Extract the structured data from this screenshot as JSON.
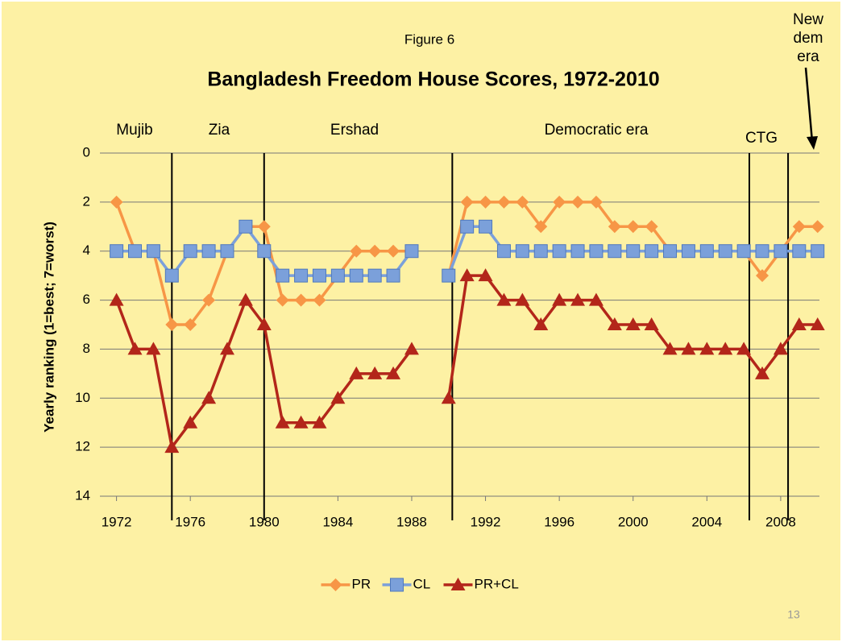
{
  "chart_data": {
    "type": "line",
    "subtitle": "Figure 6",
    "title": "Bangladesh Freedom House Scores, 1972-2010",
    "ylabel": "Yearly ranking (1=best; 7=worst)",
    "page_number": "13",
    "x": [
      1972,
      1973,
      1974,
      1975,
      1976,
      1977,
      1978,
      1979,
      1980,
      1981,
      1982,
      1983,
      1984,
      1985,
      1986,
      1987,
      1988,
      1989,
      1990,
      1991,
      1992,
      1993,
      1994,
      1995,
      1996,
      1997,
      1998,
      1999,
      2000,
      2001,
      2002,
      2003,
      2004,
      2005,
      2006,
      2007,
      2008,
      2009,
      2010
    ],
    "series": [
      {
        "name": "PR",
        "color": "#f79646",
        "marker": "diamond",
        "values": [
          2,
          4,
          4,
          7,
          7,
          6,
          4,
          3,
          3,
          6,
          6,
          6,
          5,
          4,
          4,
          4,
          4,
          null,
          5,
          2,
          2,
          2,
          2,
          3,
          2,
          2,
          2,
          3,
          3,
          3,
          4,
          4,
          4,
          4,
          4,
          5,
          4,
          3,
          3
        ]
      },
      {
        "name": "CL",
        "color": "#7ba0da",
        "marker": "square",
        "values": [
          4,
          4,
          4,
          5,
          4,
          4,
          4,
          3,
          4,
          5,
          5,
          5,
          5,
          5,
          5,
          5,
          4,
          null,
          5,
          3,
          3,
          4,
          4,
          4,
          4,
          4,
          4,
          4,
          4,
          4,
          4,
          4,
          4,
          4,
          4,
          4,
          4,
          4,
          4
        ]
      },
      {
        "name": "PR+CL",
        "color": "#b3261a",
        "marker": "triangle",
        "values": [
          6,
          8,
          8,
          12,
          11,
          10,
          8,
          6,
          7,
          11,
          11,
          11,
          10,
          9,
          9,
          9,
          8,
          null,
          10,
          5,
          5,
          6,
          6,
          7,
          6,
          6,
          6,
          7,
          7,
          7,
          8,
          8,
          8,
          8,
          8,
          9,
          8,
          7,
          7
        ]
      }
    ],
    "xlim": [
      1971.1,
      2010.1
    ],
    "xticks": [
      1972,
      1976,
      1980,
      1984,
      1988,
      1992,
      1996,
      2000,
      2004,
      2008
    ],
    "ylim": [
      0,
      14
    ],
    "y_inverted": true,
    "yticks": [
      0,
      2,
      4,
      6,
      8,
      10,
      12,
      14
    ],
    "grid": true,
    "legend": "bottom",
    "period_boundaries": [
      1975,
      1980,
      1990.2,
      2006.3,
      2008.4
    ],
    "periods": [
      "Mujib",
      "Zia",
      "Ershad",
      "Democratic era",
      "CTG"
    ],
    "last_period": [
      "New",
      "dem",
      "era"
    ]
  }
}
